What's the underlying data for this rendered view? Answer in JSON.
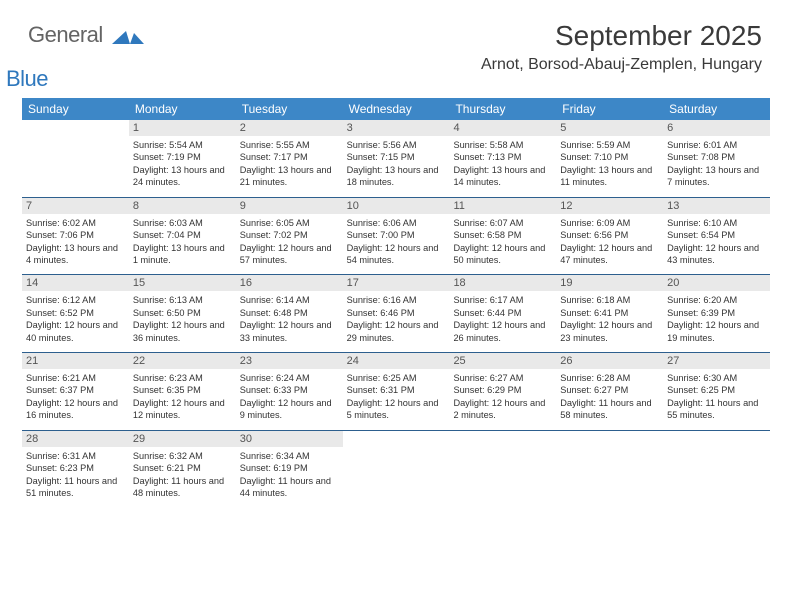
{
  "logo": {
    "general": "General",
    "blue": "Blue"
  },
  "colors": {
    "header_bg": "#3d87c7",
    "header_text": "#ffffff",
    "daynum_bg": "#e9e9e9",
    "daynum_text": "#555555",
    "cell_text": "#333333",
    "divider": "#2d5f8e",
    "logo_gray": "#646464",
    "logo_blue": "#2f78bd",
    "page_bg": "#ffffff"
  },
  "fonts": {
    "title_pt": 28,
    "location_pt": 16,
    "dayhdr_pt": 12,
    "daynum_pt": 11,
    "info_pt": 9.2
  },
  "header": {
    "month": "September 2025",
    "location": "Arnot, Borsod-Abauj-Zemplen, Hungary"
  },
  "day_names": [
    "Sunday",
    "Monday",
    "Tuesday",
    "Wednesday",
    "Thursday",
    "Friday",
    "Saturday"
  ],
  "weeks": [
    [
      {
        "day": "",
        "sunrise": "",
        "sunset": "",
        "daylight": ""
      },
      {
        "day": "1",
        "sunrise": "Sunrise: 5:54 AM",
        "sunset": "Sunset: 7:19 PM",
        "daylight": "Daylight: 13 hours and 24 minutes."
      },
      {
        "day": "2",
        "sunrise": "Sunrise: 5:55 AM",
        "sunset": "Sunset: 7:17 PM",
        "daylight": "Daylight: 13 hours and 21 minutes."
      },
      {
        "day": "3",
        "sunrise": "Sunrise: 5:56 AM",
        "sunset": "Sunset: 7:15 PM",
        "daylight": "Daylight: 13 hours and 18 minutes."
      },
      {
        "day": "4",
        "sunrise": "Sunrise: 5:58 AM",
        "sunset": "Sunset: 7:13 PM",
        "daylight": "Daylight: 13 hours and 14 minutes."
      },
      {
        "day": "5",
        "sunrise": "Sunrise: 5:59 AM",
        "sunset": "Sunset: 7:10 PM",
        "daylight": "Daylight: 13 hours and 11 minutes."
      },
      {
        "day": "6",
        "sunrise": "Sunrise: 6:01 AM",
        "sunset": "Sunset: 7:08 PM",
        "daylight": "Daylight: 13 hours and 7 minutes."
      }
    ],
    [
      {
        "day": "7",
        "sunrise": "Sunrise: 6:02 AM",
        "sunset": "Sunset: 7:06 PM",
        "daylight": "Daylight: 13 hours and 4 minutes."
      },
      {
        "day": "8",
        "sunrise": "Sunrise: 6:03 AM",
        "sunset": "Sunset: 7:04 PM",
        "daylight": "Daylight: 13 hours and 1 minute."
      },
      {
        "day": "9",
        "sunrise": "Sunrise: 6:05 AM",
        "sunset": "Sunset: 7:02 PM",
        "daylight": "Daylight: 12 hours and 57 minutes."
      },
      {
        "day": "10",
        "sunrise": "Sunrise: 6:06 AM",
        "sunset": "Sunset: 7:00 PM",
        "daylight": "Daylight: 12 hours and 54 minutes."
      },
      {
        "day": "11",
        "sunrise": "Sunrise: 6:07 AM",
        "sunset": "Sunset: 6:58 PM",
        "daylight": "Daylight: 12 hours and 50 minutes."
      },
      {
        "day": "12",
        "sunrise": "Sunrise: 6:09 AM",
        "sunset": "Sunset: 6:56 PM",
        "daylight": "Daylight: 12 hours and 47 minutes."
      },
      {
        "day": "13",
        "sunrise": "Sunrise: 6:10 AM",
        "sunset": "Sunset: 6:54 PM",
        "daylight": "Daylight: 12 hours and 43 minutes."
      }
    ],
    [
      {
        "day": "14",
        "sunrise": "Sunrise: 6:12 AM",
        "sunset": "Sunset: 6:52 PM",
        "daylight": "Daylight: 12 hours and 40 minutes."
      },
      {
        "day": "15",
        "sunrise": "Sunrise: 6:13 AM",
        "sunset": "Sunset: 6:50 PM",
        "daylight": "Daylight: 12 hours and 36 minutes."
      },
      {
        "day": "16",
        "sunrise": "Sunrise: 6:14 AM",
        "sunset": "Sunset: 6:48 PM",
        "daylight": "Daylight: 12 hours and 33 minutes."
      },
      {
        "day": "17",
        "sunrise": "Sunrise: 6:16 AM",
        "sunset": "Sunset: 6:46 PM",
        "daylight": "Daylight: 12 hours and 29 minutes."
      },
      {
        "day": "18",
        "sunrise": "Sunrise: 6:17 AM",
        "sunset": "Sunset: 6:44 PM",
        "daylight": "Daylight: 12 hours and 26 minutes."
      },
      {
        "day": "19",
        "sunrise": "Sunrise: 6:18 AM",
        "sunset": "Sunset: 6:41 PM",
        "daylight": "Daylight: 12 hours and 23 minutes."
      },
      {
        "day": "20",
        "sunrise": "Sunrise: 6:20 AM",
        "sunset": "Sunset: 6:39 PM",
        "daylight": "Daylight: 12 hours and 19 minutes."
      }
    ],
    [
      {
        "day": "21",
        "sunrise": "Sunrise: 6:21 AM",
        "sunset": "Sunset: 6:37 PM",
        "daylight": "Daylight: 12 hours and 16 minutes."
      },
      {
        "day": "22",
        "sunrise": "Sunrise: 6:23 AM",
        "sunset": "Sunset: 6:35 PM",
        "daylight": "Daylight: 12 hours and 12 minutes."
      },
      {
        "day": "23",
        "sunrise": "Sunrise: 6:24 AM",
        "sunset": "Sunset: 6:33 PM",
        "daylight": "Daylight: 12 hours and 9 minutes."
      },
      {
        "day": "24",
        "sunrise": "Sunrise: 6:25 AM",
        "sunset": "Sunset: 6:31 PM",
        "daylight": "Daylight: 12 hours and 5 minutes."
      },
      {
        "day": "25",
        "sunrise": "Sunrise: 6:27 AM",
        "sunset": "Sunset: 6:29 PM",
        "daylight": "Daylight: 12 hours and 2 minutes."
      },
      {
        "day": "26",
        "sunrise": "Sunrise: 6:28 AM",
        "sunset": "Sunset: 6:27 PM",
        "daylight": "Daylight: 11 hours and 58 minutes."
      },
      {
        "day": "27",
        "sunrise": "Sunrise: 6:30 AM",
        "sunset": "Sunset: 6:25 PM",
        "daylight": "Daylight: 11 hours and 55 minutes."
      }
    ],
    [
      {
        "day": "28",
        "sunrise": "Sunrise: 6:31 AM",
        "sunset": "Sunset: 6:23 PM",
        "daylight": "Daylight: 11 hours and 51 minutes."
      },
      {
        "day": "29",
        "sunrise": "Sunrise: 6:32 AM",
        "sunset": "Sunset: 6:21 PM",
        "daylight": "Daylight: 11 hours and 48 minutes."
      },
      {
        "day": "30",
        "sunrise": "Sunrise: 6:34 AM",
        "sunset": "Sunset: 6:19 PM",
        "daylight": "Daylight: 11 hours and 44 minutes."
      },
      {
        "day": "",
        "sunrise": "",
        "sunset": "",
        "daylight": ""
      },
      {
        "day": "",
        "sunrise": "",
        "sunset": "",
        "daylight": ""
      },
      {
        "day": "",
        "sunrise": "",
        "sunset": "",
        "daylight": ""
      },
      {
        "day": "",
        "sunrise": "",
        "sunset": "",
        "daylight": ""
      }
    ]
  ]
}
